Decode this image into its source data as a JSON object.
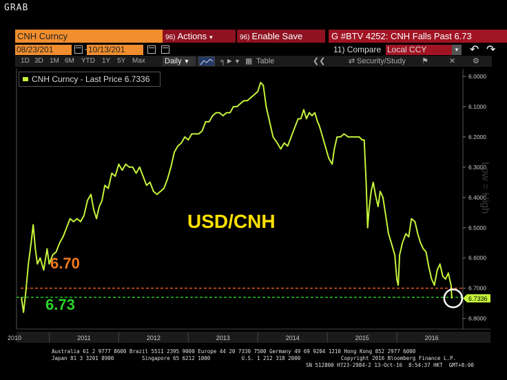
{
  "app": {
    "grab_label": "GRAB"
  },
  "toolbar": {
    "ticker": "CNH Curncy",
    "actions_num": "96)",
    "actions_label": "Actions",
    "enable_save_num": "96)",
    "enable_save_label": "Enable Save",
    "headline": "G #BTV 4252: CNH Falls Past 6.73",
    "start_date": "08/23/201",
    "end_date": "10/13/201",
    "compare_label": "11) Compare",
    "currency_select": "Local CCY",
    "periods": [
      "1D",
      "3D",
      "1M",
      "6M",
      "YTD",
      "1Y",
      "5Y",
      "Max"
    ],
    "frequency": "Daily",
    "table_label": "Table",
    "security_study_label": "Security/Study"
  },
  "legend": {
    "label": "CNH Curncy - Last Price 6.7336"
  },
  "annotations": {
    "title": "USD/CNH",
    "level_670": "6.70",
    "level_673": "6.73",
    "last_price_tag": "6.7336",
    "side_text": "Low  =  High"
  },
  "colors": {
    "line": "#c6f53a",
    "orange_dash": "#e85c1c",
    "green_dash": "#22c71e",
    "title": "#ffe100",
    "orange_label": "#f07a1e",
    "green_label": "#2bd22b",
    "tag_bg": "#c6f53a",
    "header_orange": "#f08d2e",
    "header_red": "#a01424"
  },
  "chart_data": {
    "type": "line",
    "title": "USD/CNH",
    "series": [
      {
        "name": "CNH Curncy - Last Price",
        "points": [
          [
            2010.6,
            6.73
          ],
          [
            2010.63,
            6.78
          ],
          [
            2010.66,
            6.72
          ],
          [
            2010.7,
            6.62
          ],
          [
            2010.74,
            6.55
          ],
          [
            2010.77,
            6.49
          ],
          [
            2010.8,
            6.57
          ],
          [
            2010.83,
            6.62
          ],
          [
            2010.87,
            6.6
          ],
          [
            2010.92,
            6.64
          ],
          [
            2010.97,
            6.57
          ],
          [
            2011.0,
            6.62
          ],
          [
            2011.05,
            6.59
          ],
          [
            2011.1,
            6.58
          ],
          [
            2011.15,
            6.55
          ],
          [
            2011.2,
            6.53
          ],
          [
            2011.25,
            6.5
          ],
          [
            2011.3,
            6.47
          ],
          [
            2011.35,
            6.48
          ],
          [
            2011.4,
            6.47
          ],
          [
            2011.45,
            6.48
          ],
          [
            2011.5,
            6.46
          ],
          [
            2011.55,
            6.41
          ],
          [
            2011.6,
            6.39
          ],
          [
            2011.64,
            6.44
          ],
          [
            2011.68,
            6.47
          ],
          [
            2011.72,
            6.43
          ],
          [
            2011.76,
            6.41
          ],
          [
            2011.8,
            6.36
          ],
          [
            2011.85,
            6.37
          ],
          [
            2011.9,
            6.32
          ],
          [
            2011.95,
            6.33
          ],
          [
            2012.0,
            6.29
          ],
          [
            2012.05,
            6.31
          ],
          [
            2012.1,
            6.29
          ],
          [
            2012.15,
            6.3
          ],
          [
            2012.2,
            6.3
          ],
          [
            2012.25,
            6.32
          ],
          [
            2012.3,
            6.3
          ],
          [
            2012.35,
            6.33
          ],
          [
            2012.4,
            6.36
          ],
          [
            2012.45,
            6.35
          ],
          [
            2012.5,
            6.38
          ],
          [
            2012.55,
            6.39
          ],
          [
            2012.6,
            6.38
          ],
          [
            2012.65,
            6.37
          ],
          [
            2012.7,
            6.34
          ],
          [
            2012.75,
            6.3
          ],
          [
            2012.8,
            6.25
          ],
          [
            2012.85,
            6.23
          ],
          [
            2012.9,
            6.22
          ],
          [
            2012.95,
            6.2
          ],
          [
            2013.0,
            6.21
          ],
          [
            2013.05,
            6.19
          ],
          [
            2013.1,
            6.19
          ],
          [
            2013.15,
            6.19
          ],
          [
            2013.2,
            6.18
          ],
          [
            2013.25,
            6.15
          ],
          [
            2013.3,
            6.15
          ],
          [
            2013.35,
            6.13
          ],
          [
            2013.4,
            6.12
          ],
          [
            2013.45,
            6.12
          ],
          [
            2013.5,
            6.13
          ],
          [
            2013.55,
            6.12
          ],
          [
            2013.6,
            6.12
          ],
          [
            2013.65,
            6.1
          ],
          [
            2013.7,
            6.1
          ],
          [
            2013.75,
            6.09
          ],
          [
            2013.8,
            6.08
          ],
          [
            2013.85,
            6.08
          ],
          [
            2013.9,
            6.07
          ],
          [
            2013.95,
            6.06
          ],
          [
            2014.0,
            6.05
          ],
          [
            2014.04,
            6.02
          ],
          [
            2014.08,
            6.03
          ],
          [
            2014.12,
            6.1
          ],
          [
            2014.17,
            6.15
          ],
          [
            2014.22,
            6.2
          ],
          [
            2014.28,
            6.22
          ],
          [
            2014.33,
            6.24
          ],
          [
            2014.38,
            6.22
          ],
          [
            2014.43,
            6.23
          ],
          [
            2014.48,
            6.2
          ],
          [
            2014.53,
            6.17
          ],
          [
            2014.58,
            6.14
          ],
          [
            2014.62,
            6.14
          ],
          [
            2014.66,
            6.11
          ],
          [
            2014.7,
            6.14
          ],
          [
            2014.74,
            6.12
          ],
          [
            2014.78,
            6.13
          ],
          [
            2014.82,
            6.12
          ],
          [
            2014.86,
            6.15
          ],
          [
            2014.88,
            6.16
          ],
          [
            2014.92,
            6.19
          ],
          [
            2014.97,
            6.23
          ],
          [
            2015.02,
            6.27
          ],
          [
            2015.07,
            6.29
          ],
          [
            2015.1,
            6.24
          ],
          [
            2015.14,
            6.2
          ],
          [
            2015.19,
            6.2
          ],
          [
            2015.24,
            6.19
          ],
          [
            2015.3,
            6.2
          ],
          [
            2015.36,
            6.2
          ],
          [
            2015.42,
            6.2
          ],
          [
            2015.46,
            6.2
          ],
          [
            2015.5,
            6.21
          ],
          [
            2015.53,
            6.21
          ],
          [
            2015.56,
            6.36
          ],
          [
            2015.58,
            6.5
          ],
          [
            2015.6,
            6.44
          ],
          [
            2015.63,
            6.38
          ],
          [
            2015.66,
            6.35
          ],
          [
            2015.7,
            6.4
          ],
          [
            2015.73,
            6.43
          ],
          [
            2015.76,
            6.38
          ],
          [
            2015.8,
            6.4
          ],
          [
            2015.84,
            6.46
          ],
          [
            2015.88,
            6.52
          ],
          [
            2015.92,
            6.55
          ],
          [
            2015.97,
            6.59
          ],
          [
            2016.0,
            6.67
          ],
          [
            2016.02,
            6.69
          ],
          [
            2016.04,
            6.59
          ],
          [
            2016.08,
            6.55
          ],
          [
            2016.13,
            6.52
          ],
          [
            2016.17,
            6.53
          ],
          [
            2016.21,
            6.47
          ],
          [
            2016.26,
            6.48
          ],
          [
            2016.3,
            6.52
          ],
          [
            2016.34,
            6.55
          ],
          [
            2016.38,
            6.57
          ],
          [
            2016.42,
            6.58
          ],
          [
            2016.46,
            6.63
          ],
          [
            2016.5,
            6.67
          ],
          [
            2016.54,
            6.69
          ],
          [
            2016.58,
            6.64
          ],
          [
            2016.62,
            6.62
          ],
          [
            2016.66,
            6.66
          ],
          [
            2016.7,
            6.67
          ],
          [
            2016.74,
            6.65
          ],
          [
            2016.78,
            6.69
          ],
          [
            2016.79,
            6.7336
          ]
        ]
      }
    ],
    "reference_lines": [
      {
        "value": 6.7,
        "label": "6.70"
      },
      {
        "value": 6.73,
        "label": "6.73"
      }
    ],
    "x_ticks": [
      "2010",
      "2011",
      "2012",
      "2013",
      "2014",
      "2015",
      "2016"
    ],
    "x_tick_values": [
      2010.5,
      2011.5,
      2012.5,
      2013.5,
      2014.5,
      2015.5,
      2016.5
    ],
    "xlim": [
      2010.53,
      2016.95
    ],
    "y_ticks": [
      "6.0000",
      "6.1000",
      "6.2000",
      "6.3000",
      "6.4000",
      "6.5000",
      "6.6000",
      "6.7000",
      "6.8000"
    ],
    "y_tick_values": [
      6.0,
      6.1,
      6.2,
      6.3,
      6.4,
      6.5,
      6.6,
      6.7,
      6.8
    ],
    "ylim": [
      5.975,
      6.835
    ],
    "y_inverted": true,
    "grid": false,
    "legend_position": "top-left"
  },
  "footer": {
    "line1": "Australia 61 2 9777 8600 Brazil 5511 2395 9000 Europe 44 20 7330 7500 Germany 49 69 9204 1210 Hong Kong 852 2977 6000",
    "line2": "Japan 81 3 3201 8900         Singapore 65 6212 1000          U.S. 1 212 318 2000             Copyright 2016 Bloomberg Finance L.P.",
    "line3": "SN 512800 H723-2984-2 13-Oct-16  8:54:37 HKT  GMT+8:00"
  }
}
